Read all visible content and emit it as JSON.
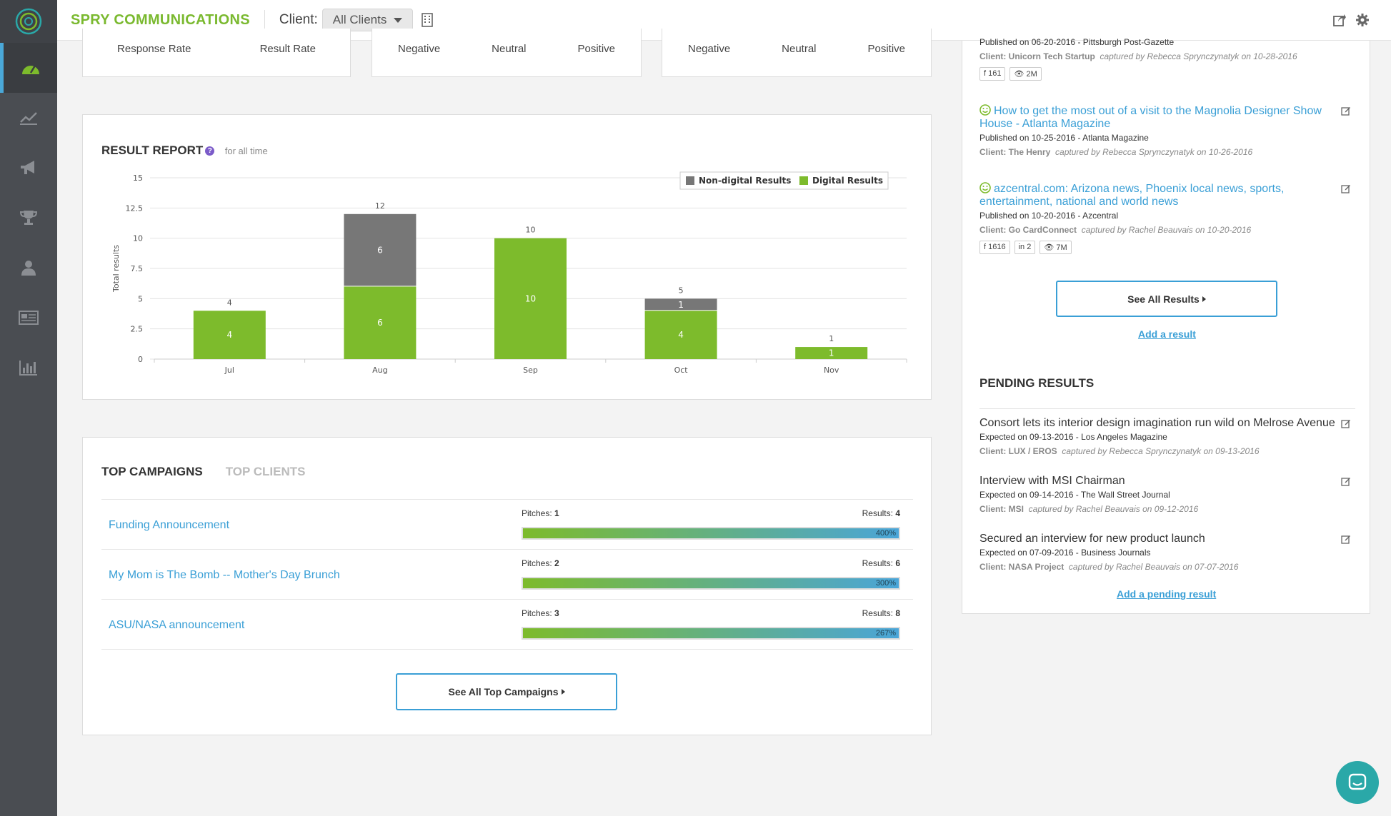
{
  "header": {
    "brand": "SPRY COMMUNICATIONS",
    "client_label": "Client:",
    "client_value": "All Clients"
  },
  "sidebar": {
    "items": [
      "dashboard-icon",
      "trend-icon",
      "megaphone-icon",
      "trophy-icon",
      "user-icon",
      "newspaper-icon",
      "bar-chart-icon"
    ]
  },
  "stats": {
    "panel1": [
      "Response Rate",
      "Result Rate"
    ],
    "panel2": [
      "Negative",
      "Neutral",
      "Positive"
    ],
    "panel3": [
      "Negative",
      "Neutral",
      "Positive"
    ]
  },
  "result_report": {
    "title": "RESULT REPORT",
    "subtitle": "for all time"
  },
  "chart_data": {
    "type": "bar",
    "stacked": true,
    "categories": [
      "Jul",
      "Aug",
      "Sep",
      "Oct",
      "Nov"
    ],
    "series": [
      {
        "name": "Digital Results",
        "values": [
          4,
          6,
          10,
          4,
          1
        ],
        "color": "#7dbb2c"
      },
      {
        "name": "Non-digital Results",
        "values": [
          0,
          6,
          0,
          1,
          0
        ],
        "color": "#777777"
      }
    ],
    "totals": [
      4,
      12,
      10,
      5,
      1
    ],
    "ylabel": "Total results",
    "ylim": [
      0,
      15
    ],
    "yticks": [
      "0",
      "2.5",
      "5",
      "7.5",
      "10",
      "12.5",
      "15"
    ],
    "grid": true,
    "legend": "top-right"
  },
  "top_campaigns": {
    "tab_active": "TOP CAMPAIGNS",
    "tab_inactive": "TOP CLIENTS",
    "pitches_label": "Pitches:",
    "results_label": "Results:",
    "rows": [
      {
        "name": "Funding Announcement",
        "pitches": "1",
        "results": "4",
        "percent": "400%"
      },
      {
        "name": "My Mom is The Bomb -- Mother's Day Brunch",
        "pitches": "2",
        "results": "6",
        "percent": "300%"
      },
      {
        "name": "ASU/NASA announcement",
        "pitches": "3",
        "results": "8",
        "percent": "267%"
      }
    ],
    "see_all": "See All Top Campaigns"
  },
  "results": {
    "items": [
      {
        "title": "",
        "published": "Published on  06-20-2016  - Pittsburgh Post-Gazette",
        "client": "Client: Unicorn Tech Startup",
        "captured": "captured by Rebecca Sprynczynatyk on 10-28-2016",
        "badges": [
          "f 161",
          "👁 2M"
        ]
      },
      {
        "title": "How to get the most out of a visit to the Magnolia Designer Show House - Atlanta Magazine",
        "published": "Published on  10-25-2016  - Atlanta Magazine",
        "client": "Client: The Henry",
        "captured": "captured by Rebecca Sprynczynatyk on 10-26-2016",
        "badges": []
      },
      {
        "title": "azcentral.com: Arizona news, Phoenix local news, sports, entertainment, national and world news",
        "published": "Published on  10-20-2016  - Azcentral",
        "client": "Client: Go CardConnect",
        "captured": "captured by Rachel Beauvais on 10-20-2016",
        "badges": [
          "f 1616",
          "in 2",
          "👁 7M"
        ]
      }
    ],
    "see_all": "See All Results",
    "add": "Add a result"
  },
  "pending": {
    "title": "PENDING RESULTS",
    "items": [
      {
        "title": "Consort lets its interior design imagination run wild on Melrose Avenue",
        "expected": "Expected on  09-13-2016  - Los Angeles Magazine",
        "client": "Client: LUX / EROS",
        "captured": "captured by Rebecca Sprynczynatyk on 09-13-2016"
      },
      {
        "title": "Interview with MSI Chairman",
        "expected": "Expected on  09-14-2016  - The Wall Street Journal",
        "client": "Client: MSI",
        "captured": "captured by Rachel Beauvais on 09-12-2016"
      },
      {
        "title": "Secured an interview for new product launch",
        "expected": "Expected on  07-09-2016  - Business Journals",
        "client": "Client: NASA Project",
        "captured": "captured by Rachel Beauvais on 07-07-2016"
      }
    ],
    "add": "Add a pending result"
  }
}
